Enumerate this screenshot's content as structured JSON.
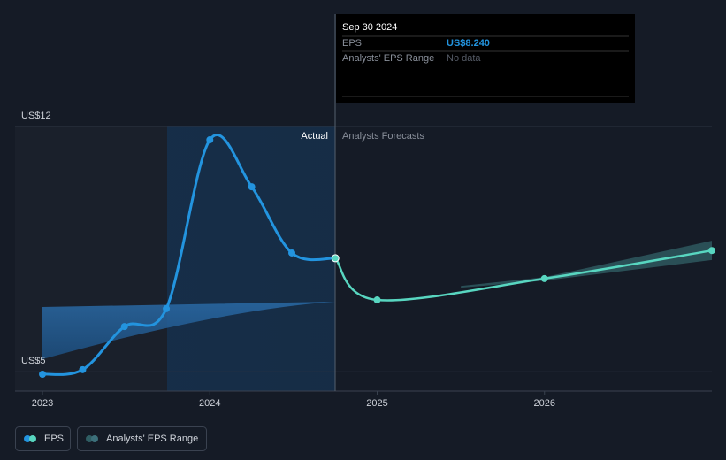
{
  "chart_data": {
    "type": "line",
    "series": [
      {
        "name": "EPS",
        "color": "#2394df",
        "x": [
          2023.0,
          2023.24,
          2023.49,
          2023.74,
          2024.0,
          2024.25,
          2024.49,
          2024.75
        ],
        "values": [
          4.93,
          5.06,
          6.29,
          6.8,
          11.62,
          10.28,
          8.39,
          8.24
        ]
      },
      {
        "name": "Analysts' EPS Range",
        "color": "#2f5d63",
        "x": [
          2025.5,
          2026.0,
          2027.0
        ],
        "low": [
          7.4,
          7.6,
          8.19
        ],
        "high": [
          7.45,
          7.7,
          8.74
        ]
      }
    ],
    "forecast": {
      "color": "#58d6c0",
      "x": [
        2024.75,
        2025.0,
        2026.0,
        2027.0
      ],
      "values": [
        8.24,
        7.05,
        7.66,
        8.46
      ]
    },
    "xlim": [
      2022.836,
      2027.0
    ],
    "xticks": [
      2023,
      2024,
      2025,
      2026
    ],
    "ylim": [
      4.45,
      12
    ],
    "yticks": [
      {
        "value": 5,
        "label": "US$5"
      },
      {
        "value": 12,
        "label": "US$12"
      }
    ],
    "annotations": [
      "Actual",
      "Analysts Forecasts"
    ],
    "tooltip": {
      "date": "Sep 30 2024",
      "rows": [
        {
          "label": "EPS",
          "value": "US$8.240"
        },
        {
          "label": "Analysts' EPS Range",
          "value": "No data"
        }
      ]
    }
  }
}
